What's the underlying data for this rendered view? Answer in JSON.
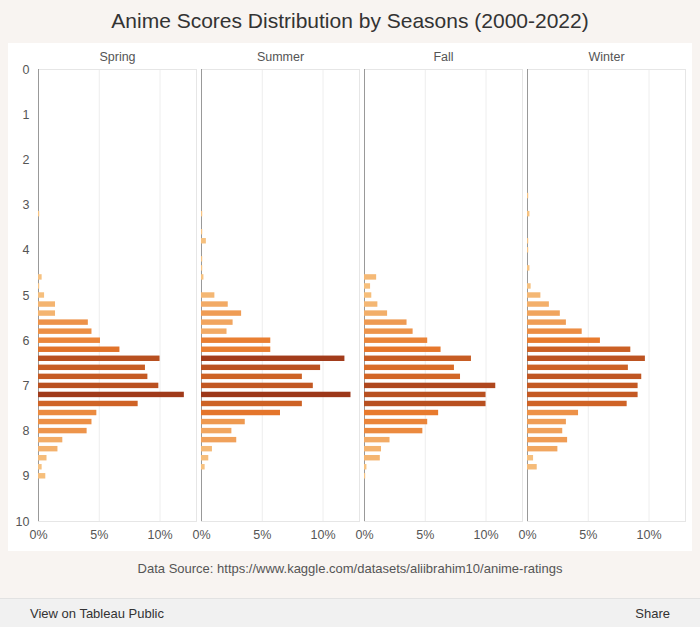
{
  "chart_data": {
    "type": "histogram",
    "orientation": "horizontal",
    "title": "Anime Scores Distribution by Seasons (2000-2022)",
    "caption": "Data Source: https://www.kaggle.com/datasets/aliibrahim10/anime-ratings",
    "toolbar": {
      "left": "View on Tableau Public",
      "right": "Share"
    },
    "bins": [
      2.7,
      2.9,
      3.1,
      3.3,
      3.5,
      3.7,
      3.9,
      4.1,
      4.3,
      4.5,
      4.7,
      4.9,
      5.1,
      5.3,
      5.5,
      5.7,
      5.9,
      6.1,
      6.3,
      6.5,
      6.7,
      6.9,
      7.1,
      7.3,
      7.5,
      7.7,
      7.9,
      8.1,
      8.3,
      8.5,
      8.7,
      8.9,
      9.1
    ],
    "series": [
      {
        "name": "Spring",
        "values": [
          0,
          0,
          0.1,
          0,
          0,
          0,
          0,
          0,
          0,
          0.3,
          0.1,
          0.5,
          1.4,
          1.4,
          4.1,
          4.4,
          5.1,
          6.7,
          10.0,
          8.8,
          9.0,
          9.9,
          12.0,
          8.2,
          4.8,
          4.4,
          4.0,
          2.0,
          1.6,
          0.7,
          0.3,
          0.6
        ]
      },
      {
        "name": "Summer",
        "values": [
          0,
          0,
          0.1,
          0,
          0.1,
          0.4,
          0,
          0.1,
          0.1,
          0.2,
          0,
          1.1,
          2.2,
          3.3,
          2.6,
          2.1,
          5.7,
          5.7,
          11.8,
          9.8,
          8.3,
          9.2,
          12.3,
          8.3,
          6.5,
          3.6,
          2.5,
          2.9,
          0.9,
          0.6,
          0.3,
          0
        ]
      },
      {
        "name": "Fall",
        "values": [
          0,
          0,
          0,
          0,
          0,
          0,
          0,
          0,
          0,
          1.0,
          0.5,
          0.6,
          1.1,
          1.9,
          3.5,
          4.0,
          5.2,
          6.3,
          8.8,
          7.4,
          7.9,
          10.8,
          10.0,
          10.0,
          6.1,
          5.2,
          4.8,
          2.1,
          1.4,
          1.3,
          0.2,
          0.1
        ]
      },
      {
        "name": "Winter",
        "values": [
          0.1,
          0,
          0.2,
          0,
          0,
          0.1,
          0.1,
          0,
          0.2,
          0,
          0.3,
          1.1,
          1.8,
          2.7,
          3.2,
          4.5,
          6.0,
          8.5,
          9.7,
          8.3,
          9.4,
          9.1,
          9.1,
          8.2,
          4.2,
          3.2,
          2.9,
          3.3,
          2.5,
          0.5,
          0.8,
          0
        ]
      }
    ],
    "xlim": [
      0,
      13
    ],
    "xticks": [
      {
        "value": 0,
        "label": "0%"
      },
      {
        "value": 5,
        "label": "5%"
      },
      {
        "value": 10,
        "label": "10%"
      }
    ],
    "ylim": [
      0,
      10
    ],
    "yticks": [
      0,
      1,
      2,
      3,
      4,
      5,
      6,
      7,
      8,
      9,
      10
    ],
    "grid": true
  }
}
